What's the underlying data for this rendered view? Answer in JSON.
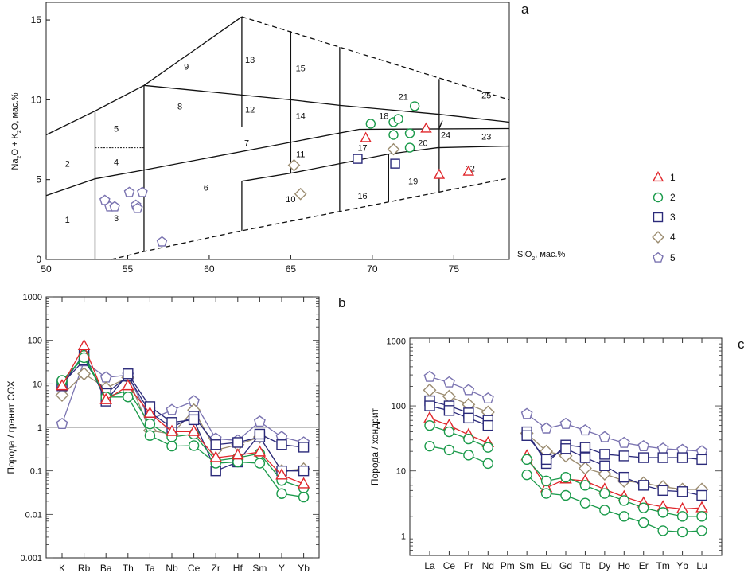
{
  "colors": {
    "1": "#e0262b",
    "2": "#1a9a4a",
    "3": "#2b2a7a",
    "4": "#9b8c70",
    "5": "#7a73b0"
  },
  "legend": [
    {
      "label": "1",
      "marker": "triangle"
    },
    {
      "label": "2",
      "marker": "circle"
    },
    {
      "label": "3",
      "marker": "square"
    },
    {
      "label": "4",
      "marker": "diamond"
    },
    {
      "label": "5",
      "marker": "pentagon"
    }
  ],
  "chart_data": [
    {
      "panel": "a",
      "type": "scatter",
      "xlabel": "SiO2, мас.%",
      "ylabel": "Na2O + K2O, мас.%",
      "xlim": [
        50,
        78.4
      ],
      "ylim": [
        0,
        16.1
      ],
      "xticks": [
        50,
        55,
        60,
        65,
        70,
        75
      ],
      "yticks": [
        0,
        5,
        10,
        15
      ],
      "fields": {
        "solid": [
          [
            [
              50,
              7.8
            ],
            [
              53,
              9.3
            ],
            [
              56,
              10.9
            ],
            [
              62,
              15.2
            ]
          ],
          [
            [
              50,
              4
            ],
            [
              53,
              5.05
            ],
            [
              56,
              5.6
            ],
            [
              69.2,
              8.15
            ],
            [
              78.4,
              8.2
            ]
          ],
          [
            [
              56,
              10.9
            ],
            [
              62,
              10.3
            ],
            [
              65,
              10
            ],
            [
              68,
              9.65
            ],
            [
              74,
              9.1
            ],
            [
              78.4,
              8.6
            ]
          ],
          [
            [
              62,
              4.9
            ],
            [
              65,
              5.4
            ],
            [
              68,
              6
            ],
            [
              71,
              6.6
            ],
            [
              74,
              7.0
            ],
            [
              78.4,
              7.1
            ]
          ],
          [
            [
              53,
              0
            ],
            [
              53,
              9.3
            ]
          ],
          [
            [
              56,
              0.5
            ],
            [
              56,
              10.9
            ]
          ],
          [
            [
              62,
              1.8
            ],
            [
              62,
              4.9
            ]
          ],
          [
            [
              62,
              8.3
            ],
            [
              62,
              15.2
            ]
          ],
          [
            [
              65,
              5.4
            ],
            [
              65,
              14.3
            ]
          ],
          [
            [
              68,
              3
            ],
            [
              68,
              13.3
            ]
          ],
          [
            [
              71,
              3.6
            ],
            [
              71,
              6.6
            ]
          ],
          [
            [
              74.1,
              4.2
            ],
            [
              74.1,
              11.3
            ]
          ],
          [
            [
              74.1,
              8.2
            ],
            [
              74.3,
              8.7
            ]
          ]
        ],
        "dashed": [
          [
            [
              62,
              15.2
            ],
            [
              78.4,
              10
            ]
          ],
          [
            [
              54,
              0
            ],
            [
              56,
              0.5
            ],
            [
              62,
              1.8
            ],
            [
              68,
              3
            ],
            [
              71,
              3.6
            ],
            [
              74,
              4.2
            ],
            [
              78.4,
              5.1
            ]
          ]
        ],
        "dotted": [
          [
            [
              53,
              7
            ],
            [
              56,
              7
            ]
          ],
          [
            [
              56,
              8.3
            ],
            [
              65,
              8.3
            ]
          ]
        ],
        "labels": [
          {
            "t": "1",
            "x": 51.3,
            "y": 2.3
          },
          {
            "t": "2",
            "x": 51.3,
            "y": 5.8
          },
          {
            "t": "3",
            "x": 54.3,
            "y": 2.4
          },
          {
            "t": "4",
            "x": 54.3,
            "y": 5.9
          },
          {
            "t": "5",
            "x": 54.3,
            "y": 8
          },
          {
            "t": "6",
            "x": 59.8,
            "y": 4.3
          },
          {
            "t": "7",
            "x": 62.3,
            "y": 7.1
          },
          {
            "t": "8",
            "x": 58.2,
            "y": 9.4
          },
          {
            "t": "9",
            "x": 58.6,
            "y": 11.9
          },
          {
            "t": "10",
            "x": 65,
            "y": 3.6
          },
          {
            "t": "11",
            "x": 65.6,
            "y": 6.4
          },
          {
            "t": "12",
            "x": 62.5,
            "y": 9.2
          },
          {
            "t": "13",
            "x": 62.5,
            "y": 12.3
          },
          {
            "t": "14",
            "x": 65.6,
            "y": 8.8
          },
          {
            "t": "15",
            "x": 65.6,
            "y": 11.8
          },
          {
            "t": "16",
            "x": 69.4,
            "y": 3.8
          },
          {
            "t": "17",
            "x": 69.4,
            "y": 6.8
          },
          {
            "t": "18",
            "x": 70.7,
            "y": 8.8
          },
          {
            "t": "19",
            "x": 72.5,
            "y": 4.7
          },
          {
            "t": "20",
            "x": 73.1,
            "y": 7.1
          },
          {
            "t": "21",
            "x": 71.9,
            "y": 10
          },
          {
            "t": "22",
            "x": 76,
            "y": 5.5
          },
          {
            "t": "23",
            "x": 77,
            "y": 7.5
          },
          {
            "t": "24",
            "x": 74.5,
            "y": 7.6
          },
          {
            "t": "25",
            "x": 77,
            "y": 10.1
          }
        ]
      },
      "series": [
        {
          "group": "1",
          "marker": "triangle",
          "points": [
            [
              69.6,
              7.6
            ],
            [
              73.3,
              8.2
            ],
            [
              74.1,
              5.3
            ],
            [
              75.9,
              5.5
            ]
          ]
        },
        {
          "group": "2",
          "marker": "circle",
          "points": [
            [
              69.9,
              8.5
            ],
            [
              71.3,
              7.8
            ],
            [
              71.3,
              8.6
            ],
            [
              71.6,
              8.8
            ],
            [
              72.3,
              7.9
            ],
            [
              72.3,
              7.0
            ],
            [
              72.6,
              9.6
            ]
          ]
        },
        {
          "group": "3",
          "marker": "square",
          "points": [
            [
              69.1,
              6.3
            ],
            [
              71.4,
              6.0
            ]
          ]
        },
        {
          "group": "4",
          "marker": "diamond",
          "points": [
            [
              65.2,
              5.9
            ],
            [
              65.6,
              4.1
            ],
            [
              71.3,
              6.9
            ]
          ]
        },
        {
          "group": "5",
          "marker": "pentagon",
          "points": [
            [
              53.6,
              3.7
            ],
            [
              53.9,
              3.3
            ],
            [
              54.2,
              3.3
            ],
            [
              55.1,
              4.2
            ],
            [
              55.5,
              3.4
            ],
            [
              55.6,
              3.2
            ],
            [
              55.9,
              4.2
            ],
            [
              57.1,
              1.1
            ]
          ]
        }
      ]
    },
    {
      "panel": "b",
      "type": "line",
      "ylabel": "Порода / гранит СОХ",
      "yscale": "log",
      "ylim": [
        0.001,
        1000
      ],
      "yticks": [
        "0.001",
        "0.01",
        "0.1",
        "1",
        "10",
        "100",
        "1000"
      ],
      "reference_line": 1,
      "categories": [
        "K",
        "Rb",
        "Ba",
        "Th",
        "Ta",
        "Nb",
        "Ce",
        "Zr",
        "Hf",
        "Sm",
        "Y",
        "Yb"
      ],
      "series": [
        {
          "group": "5",
          "marker": "pentagon",
          "values": [
            1.2,
            33,
            14,
            16,
            1.5,
            2.5,
            4,
            0.55,
            0.5,
            1.35,
            0.6,
            0.45
          ]
        },
        {
          "group": "4",
          "marker": "diamond",
          "values": [
            5.5,
            17,
            8,
            14,
            0.85,
            0.7,
            2.5,
            0.3,
            0.4,
            0.6,
            0.1,
            0.11
          ]
        },
        {
          "group": "3",
          "marker": "square",
          "values": [
            10,
            35,
            6,
            15,
            2.2,
            1.0,
            1.8,
            0.4,
            0.45,
            0.6,
            0.1,
            0.1
          ]
        },
        {
          "group": "3",
          "marker": "square",
          "values": [
            9,
            50,
            4,
            17,
            3,
            1.3,
            1.5,
            0.1,
            0.16,
            0.7,
            0.4,
            0.35
          ]
        },
        {
          "group": "2",
          "marker": "circle",
          "values": [
            11,
            45,
            5,
            7,
            1.2,
            0.6,
            0.7,
            0.17,
            0.2,
            0.25,
            0.06,
            0.04
          ]
        },
        {
          "group": "2",
          "marker": "circle",
          "values": [
            12,
            40,
            5,
            5,
            0.65,
            0.37,
            0.38,
            0.15,
            0.16,
            0.15,
            0.03,
            0.025
          ]
        },
        {
          "group": "1",
          "marker": "triangle",
          "values": [
            9,
            75,
            4.3,
            9,
            2.1,
            0.8,
            0.8,
            0.2,
            0.23,
            0.27,
            0.08,
            0.05
          ]
        }
      ]
    },
    {
      "panel": "c",
      "type": "line",
      "ylabel": "Порода / хондрит",
      "yscale": "log",
      "ylim": [
        0.5,
        1100
      ],
      "yticks": [
        "1",
        "10",
        "100",
        "1000"
      ],
      "categories": [
        "La",
        "Ce",
        "Pr",
        "Nd",
        "Pm",
        "Sm",
        "Eu",
        "Gd",
        "Tb",
        "Dy",
        "Ho",
        "Er",
        "Tm",
        "Yb",
        "Lu"
      ],
      "series": [
        {
          "group": "5",
          "marker": "pentagon",
          "values": [
            280,
            230,
            175,
            130,
            null,
            75,
            45,
            53,
            42,
            33,
            27,
            24,
            22,
            21,
            20
          ]
        },
        {
          "group": "4",
          "marker": "diamond",
          "values": [
            175,
            140,
            105,
            80,
            null,
            38,
            20,
            17,
            11,
            9,
            7,
            6.5,
            5.7,
            5.2,
            5.2
          ]
        },
        {
          "group": "3",
          "marker": "square",
          "values": [
            120,
            100,
            78,
            60,
            null,
            40,
            13,
            25,
            23,
            18,
            17,
            16,
            16,
            16,
            15
          ]
        },
        {
          "group": "3",
          "marker": "square",
          "values": [
            100,
            85,
            65,
            50,
            null,
            35,
            15,
            22,
            16,
            12,
            8,
            6,
            5,
            4.8,
            4.2
          ]
        },
        {
          "group": "1",
          "marker": "triangle",
          "values": [
            65,
            50,
            36,
            27,
            null,
            17,
            5.5,
            7.5,
            7,
            5.2,
            4,
            3.2,
            2.8,
            2.6,
            2.7
          ]
        },
        {
          "group": "2",
          "marker": "circle",
          "values": [
            50,
            40,
            31,
            23,
            null,
            15,
            7,
            8,
            6,
            4.5,
            3.5,
            2.7,
            2.3,
            2,
            2
          ]
        },
        {
          "group": "2",
          "marker": "circle",
          "values": [
            24,
            21,
            17.5,
            13,
            null,
            8.7,
            4.5,
            4.2,
            3.2,
            2.5,
            2,
            1.6,
            1.2,
            1.15,
            1.2
          ]
        }
      ]
    }
  ]
}
